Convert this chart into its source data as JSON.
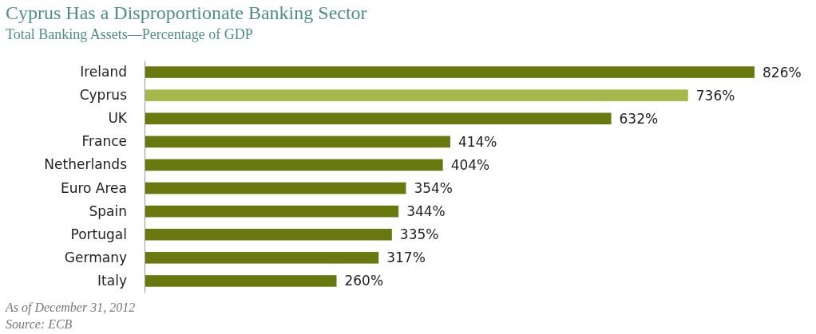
{
  "chart_data": {
    "type": "bar",
    "orientation": "horizontal",
    "title": "Cyprus Has a Disproportionate Banking Sector",
    "subtitle": "Total Banking Assets—Percentage of GDP",
    "categories": [
      "Ireland",
      "Cyprus",
      "UK",
      "France",
      "Netherlands",
      "Euro Area",
      "Spain",
      "Portugal",
      "Germany",
      "Italy"
    ],
    "values": [
      826,
      736,
      632,
      414,
      404,
      354,
      344,
      335,
      317,
      260
    ],
    "colors": [
      "#69780f",
      "#a6b84a",
      "#69780f",
      "#69780f",
      "#69780f",
      "#69780f",
      "#69780f",
      "#69780f",
      "#69780f",
      "#69780f"
    ],
    "value_labels": [
      "826%",
      "736%",
      "632%",
      "414%",
      "404%",
      "354%",
      "344%",
      "335%",
      "317%",
      "260%"
    ],
    "annotations": [
      "As of December 31, 2012",
      "Source: ECB"
    ]
  }
}
